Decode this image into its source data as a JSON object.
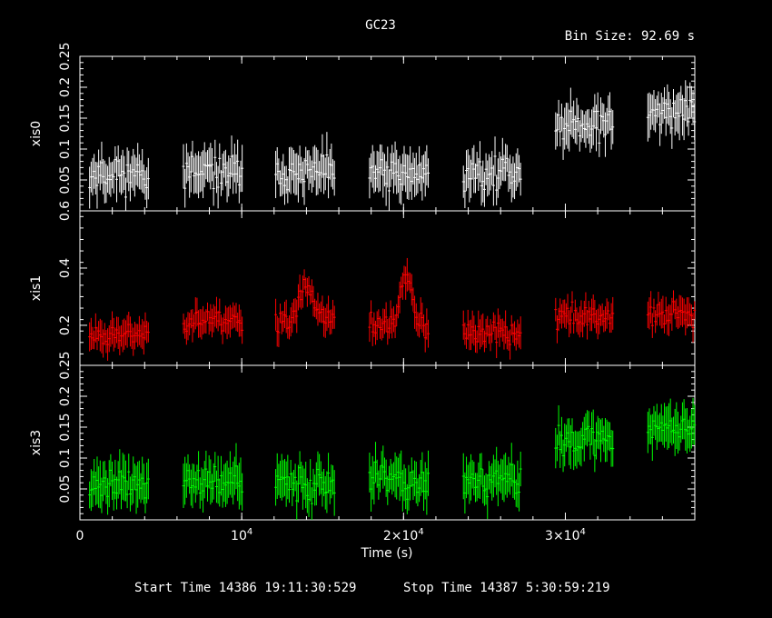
{
  "header": {
    "title": "GC23",
    "bin_size": "Bin Size: 92.69 s"
  },
  "footer": {
    "start_time": "Start Time 14386 19:11:30:529",
    "stop_time": "Stop Time 14387  5:30:59:219"
  },
  "chart_data": {
    "type": "scatter",
    "xlabel": "Time (s)",
    "xlim": [
      0,
      38000
    ],
    "x_ticks": [
      {
        "value": 0,
        "label": "0"
      },
      {
        "value": 10000,
        "label": "10",
        "sup": "4"
      },
      {
        "value": 20000,
        "label": "2×10",
        "sup": "4"
      },
      {
        "value": 30000,
        "label": "3×10",
        "sup": "4"
      }
    ],
    "segments": [
      [
        600,
        4300
      ],
      [
        6400,
        10100
      ],
      [
        12100,
        15800
      ],
      [
        17900,
        21600
      ],
      [
        23700,
        27300
      ],
      [
        29400,
        33000
      ],
      [
        35100,
        38000
      ]
    ],
    "panels": [
      {
        "name": "xis0",
        "color": "#ffffff",
        "ylim": [
          0,
          0.25
        ],
        "y_ticks": [
          {
            "value": 0.05,
            "label": "0.05"
          },
          {
            "value": 0.1,
            "label": "0.1"
          },
          {
            "value": 0.15,
            "label": "0.15"
          },
          {
            "value": 0.2,
            "label": "0.2"
          },
          {
            "value": 0.25,
            "label": "0.25"
          }
        ],
        "segment_levels": [
          0.06,
          0.06,
          0.06,
          0.06,
          0.06,
          0.14,
          0.16
        ],
        "scatter": 0.025,
        "error": 0.03,
        "seed": 11
      },
      {
        "name": "xis1",
        "color": "#ff0000",
        "ylim": [
          0.06,
          0.6
        ],
        "y_ticks": [
          {
            "value": 0.2,
            "label": "0.2"
          },
          {
            "value": 0.4,
            "label": "0.4"
          },
          {
            "value": 0.6,
            "label": "0.6"
          }
        ],
        "segment_levels": [
          0.17,
          0.22,
          0.22,
          0.2,
          0.17,
          0.23,
          0.24
        ],
        "scatter": 0.04,
        "error": 0.045,
        "seed": 23,
        "flares": [
          {
            "x": 14000,
            "y": 0.35
          },
          {
            "x": 20200,
            "y": 0.38
          }
        ]
      },
      {
        "name": "xis3",
        "color": "#00ff00",
        "ylim": [
          0,
          0.25
        ],
        "y_ticks": [
          {
            "value": 0.05,
            "label": "0.05"
          },
          {
            "value": 0.1,
            "label": "0.1"
          },
          {
            "value": 0.15,
            "label": "0.15"
          },
          {
            "value": 0.2,
            "label": "0.2"
          },
          {
            "value": 0.25,
            "label": "0.25"
          }
        ],
        "segment_levels": [
          0.06,
          0.06,
          0.06,
          0.06,
          0.06,
          0.13,
          0.15
        ],
        "scatter": 0.025,
        "error": 0.03,
        "seed": 37
      }
    ]
  }
}
